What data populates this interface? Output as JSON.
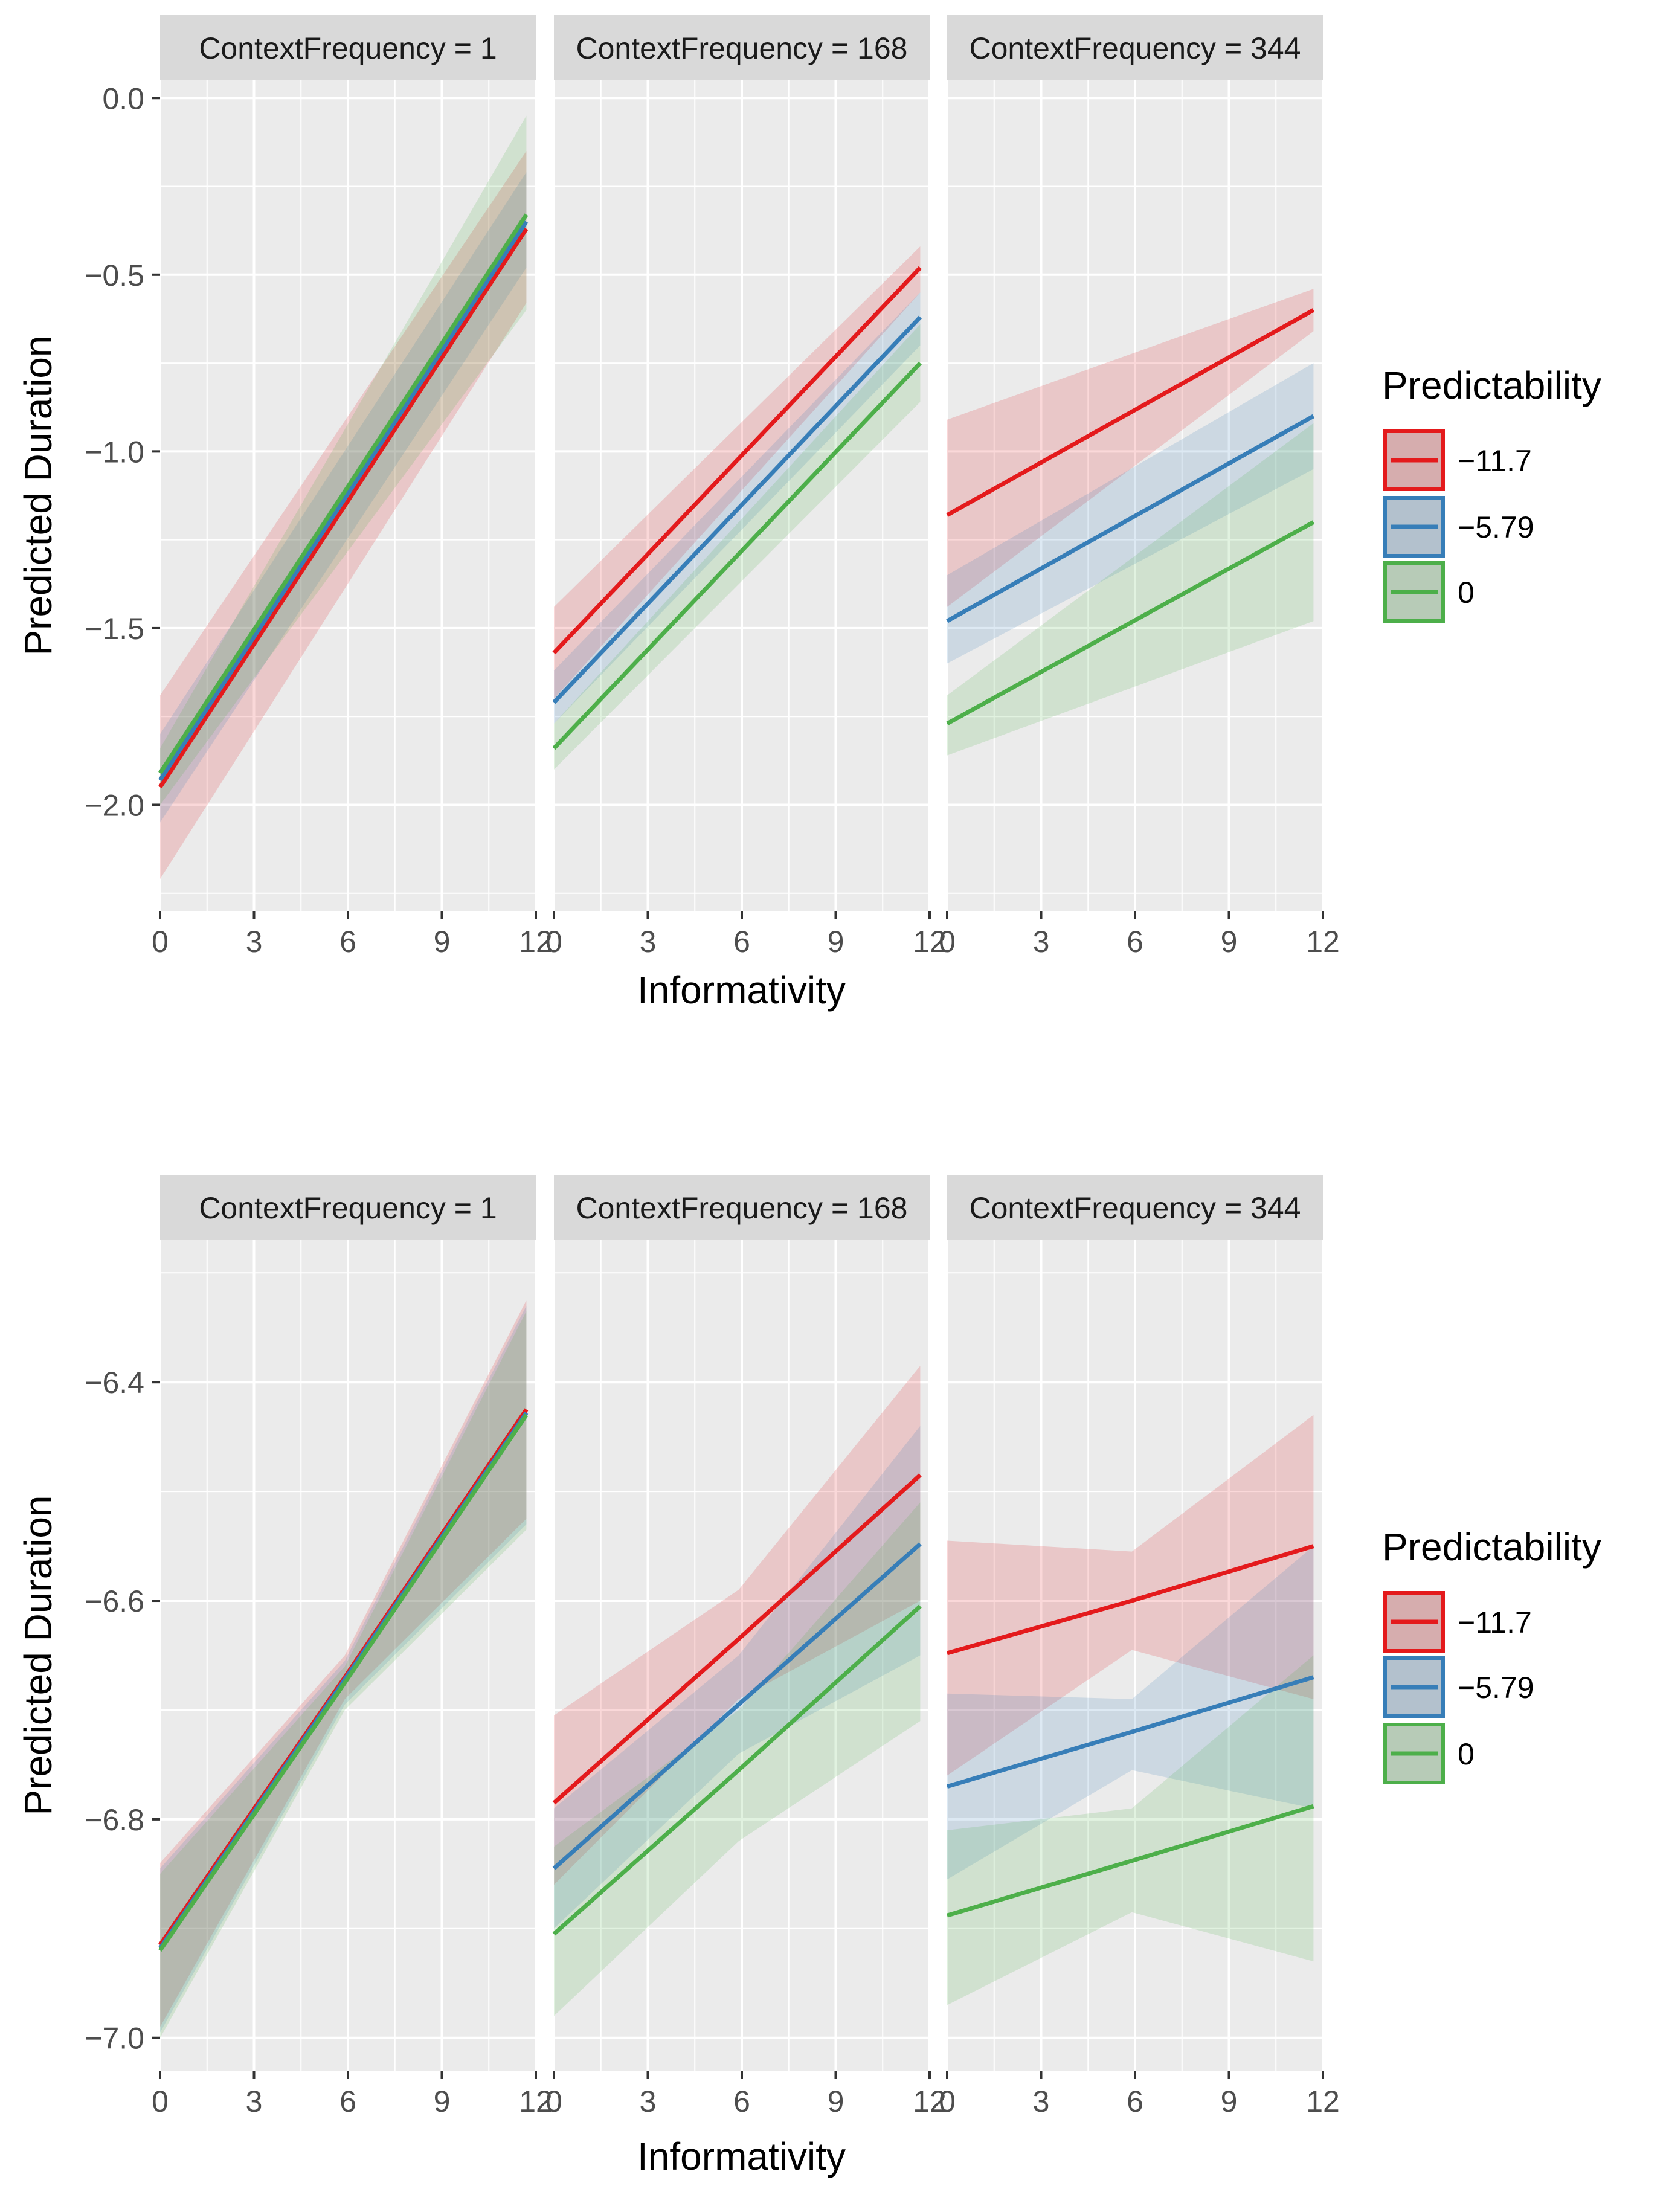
{
  "colors": {
    "panel_bg": "#ebebeb",
    "strip_bg": "#d9d9d9",
    "grid_major": "#ffffff",
    "series": [
      "#e41a1c",
      "#377eb8",
      "#4daf4a"
    ]
  },
  "chart_data": [
    {
      "type": "line",
      "subtype": "faceted line with confidence ribbons",
      "xlabel": "Informativity",
      "ylabel": "Predicted Duration",
      "xlim": [
        0,
        12
      ],
      "ylim": [
        -2.3,
        0.05
      ],
      "x_ticks": [
        0,
        3,
        6,
        9,
        12
      ],
      "x_tick_labels": [
        "0",
        "3",
        "6",
        "9",
        "12"
      ],
      "y_ticks": [
        0.0,
        -0.5,
        -1.0,
        -1.5,
        -2.0
      ],
      "y_tick_labels": [
        "0.0",
        "−0.5",
        "−1.0",
        "−1.5",
        "−2.0"
      ],
      "legend": {
        "title": "Predictability",
        "position": "right",
        "entries": [
          "−11.7",
          "−5.79",
          "0"
        ]
      },
      "facets": [
        {
          "label": "ContextFrequency = 1",
          "series": [
            {
              "name": "−11.7",
              "x": [
                0,
                11.7
              ],
              "y": [
                -1.95,
                -0.37
              ],
              "lower": [
                -2.21,
                -0.58
              ],
              "upper": [
                -1.69,
                -0.15
              ]
            },
            {
              "name": "−5.79",
              "x": [
                0,
                11.7
              ],
              "y": [
                -1.93,
                -0.35
              ],
              "lower": [
                -2.05,
                -0.48
              ],
              "upper": [
                -1.8,
                -0.21
              ]
            },
            {
              "name": "0",
              "x": [
                0,
                11.7
              ],
              "y": [
                -1.91,
                -0.33
              ],
              "lower": [
                -2.0,
                -0.6
              ],
              "upper": [
                -1.84,
                -0.05
              ]
            }
          ]
        },
        {
          "label": "ContextFrequency = 168",
          "series": [
            {
              "name": "−11.7",
              "x": [
                0,
                11.7
              ],
              "y": [
                -1.57,
                -0.48
              ],
              "lower": [
                -1.7,
                -0.55
              ],
              "upper": [
                -1.44,
                -0.42
              ]
            },
            {
              "name": "−5.79",
              "x": [
                0,
                11.7
              ],
              "y": [
                -1.71,
                -0.62
              ],
              "lower": [
                -1.77,
                -0.7
              ],
              "upper": [
                -1.62,
                -0.55
              ]
            },
            {
              "name": "0",
              "x": [
                0,
                11.7
              ],
              "y": [
                -1.84,
                -0.75
              ],
              "lower": [
                -1.9,
                -0.86
              ],
              "upper": [
                -1.77,
                -0.64
              ]
            }
          ]
        },
        {
          "label": "ContextFrequency = 344",
          "series": [
            {
              "name": "−11.7",
              "x": [
                0,
                11.7
              ],
              "y": [
                -1.18,
                -0.6
              ],
              "lower": [
                -1.44,
                -0.66
              ],
              "upper": [
                -0.91,
                -0.54
              ]
            },
            {
              "name": "−5.79",
              "x": [
                0,
                11.7
              ],
              "y": [
                -1.48,
                -0.9
              ],
              "lower": [
                -1.6,
                -1.05
              ],
              "upper": [
                -1.35,
                -0.75
              ]
            },
            {
              "name": "0",
              "x": [
                0,
                11.7
              ],
              "y": [
                -1.77,
                -1.2
              ],
              "lower": [
                -1.86,
                -1.48
              ],
              "upper": [
                -1.69,
                -0.92
              ]
            }
          ]
        }
      ]
    },
    {
      "type": "line",
      "subtype": "faceted line with confidence ribbons",
      "xlabel": "Informativity",
      "ylabel": "Predicted Duration",
      "xlim": [
        0,
        12
      ],
      "ylim": [
        -7.03,
        -6.27
      ],
      "x_ticks": [
        0,
        3,
        6,
        9,
        12
      ],
      "x_tick_labels": [
        "0",
        "3",
        "6",
        "9",
        "12"
      ],
      "y_ticks": [
        -6.4,
        -6.6,
        -6.8,
        -7.0
      ],
      "y_tick_labels": [
        "−6.4",
        "−6.6",
        "−6.8",
        "−7.0"
      ],
      "legend": {
        "title": "Predictability",
        "position": "right",
        "entries": [
          "−11.7",
          "−5.79",
          "0"
        ]
      },
      "facets": [
        {
          "label": "ContextFrequency = 1",
          "series": [
            {
              "name": "−11.7",
              "x": [
                0,
                5.9,
                11.7
              ],
              "y": [
                -6.915,
                -6.67,
                -6.425
              ],
              "lower": [
                -6.99,
                -6.69,
                -6.525
              ],
              "upper": [
                -6.84,
                -6.65,
                -6.325
              ]
            },
            {
              "name": "−5.79",
              "x": [
                0,
                5.9,
                11.7
              ],
              "y": [
                -6.918,
                -6.672,
                -6.428
              ],
              "lower": [
                -6.995,
                -6.695,
                -6.53
              ],
              "upper": [
                -6.845,
                -6.655,
                -6.33
              ]
            },
            {
              "name": "0",
              "x": [
                0,
                5.9,
                11.7
              ],
              "y": [
                -6.92,
                -6.675,
                -6.43
              ],
              "lower": [
                -7.0,
                -6.7,
                -6.535
              ],
              "upper": [
                -6.85,
                -6.66,
                -6.335
              ]
            }
          ]
        },
        {
          "label": "ContextFrequency = 168",
          "series": [
            {
              "name": "−11.7",
              "x": [
                0,
                5.9,
                11.7
              ],
              "y": [
                -6.785,
                -6.635,
                -6.485
              ],
              "lower": [
                -6.86,
                -6.69,
                -6.6
              ],
              "upper": [
                -6.705,
                -6.59,
                -6.385
              ]
            },
            {
              "name": "−5.79",
              "x": [
                0,
                5.9,
                11.7
              ],
              "y": [
                -6.845,
                -6.695,
                -6.548
              ],
              "lower": [
                -6.9,
                -6.74,
                -6.65
              ],
              "upper": [
                -6.79,
                -6.65,
                -6.44
              ]
            },
            {
              "name": "0",
              "x": [
                0,
                5.9,
                11.7
              ],
              "y": [
                -6.905,
                -6.755,
                -6.605
              ],
              "lower": [
                -6.98,
                -6.82,
                -6.71
              ],
              "upper": [
                -6.825,
                -6.7,
                -6.51
              ]
            }
          ]
        },
        {
          "label": "ContextFrequency = 344",
          "series": [
            {
              "name": "−11.7",
              "x": [
                0,
                5.9,
                11.7
              ],
              "y": [
                -6.648,
                -6.6,
                -6.55
              ],
              "lower": [
                -6.76,
                -6.645,
                -6.69
              ],
              "upper": [
                -6.545,
                -6.555,
                -6.43
              ]
            },
            {
              "name": "−5.79",
              "x": [
                0,
                5.9,
                11.7
              ],
              "y": [
                -6.77,
                -6.72,
                -6.67
              ],
              "lower": [
                -6.855,
                -6.755,
                -6.79
              ],
              "upper": [
                -6.685,
                -6.69,
                -6.55
              ]
            },
            {
              "name": "0",
              "x": [
                0,
                5.9,
                11.7
              ],
              "y": [
                -6.888,
                -6.838,
                -6.788
              ],
              "lower": [
                -6.97,
                -6.885,
                -6.93
              ],
              "upper": [
                -6.81,
                -6.79,
                -6.65
              ]
            }
          ]
        }
      ]
    }
  ]
}
